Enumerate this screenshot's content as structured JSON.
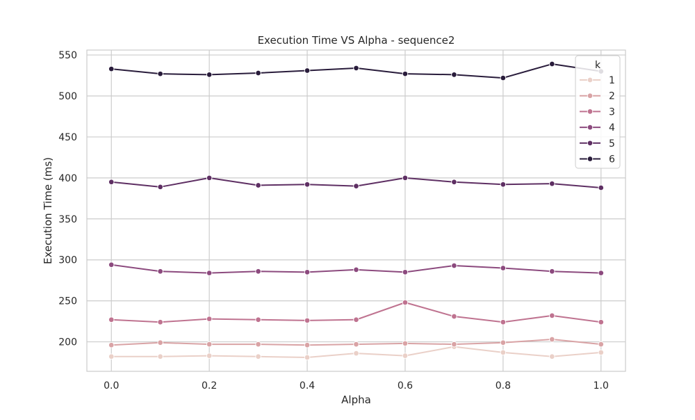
{
  "chart_data": {
    "type": "line",
    "title": "Execution Time VS Alpha - sequence2",
    "xlabel": "Alpha",
    "ylabel": "Execution Time (ms)",
    "x": [
      0.0,
      0.1,
      0.2,
      0.3,
      0.4,
      0.5,
      0.6,
      0.7,
      0.8,
      0.9,
      1.0
    ],
    "xlim": [
      -0.05,
      1.05
    ],
    "ylim": [
      164,
      556
    ],
    "xticks": [
      "0.0",
      "0.2",
      "0.4",
      "0.6",
      "0.8",
      "1.0"
    ],
    "yticks": [
      "200",
      "250",
      "300",
      "350",
      "400",
      "450",
      "500",
      "550"
    ],
    "grid": true,
    "legend": {
      "title": "k",
      "position": "top-right"
    },
    "series": [
      {
        "name": "1",
        "color": "#ead0c8",
        "values": [
          182,
          182,
          183,
          182,
          181,
          186,
          183,
          194,
          187,
          182,
          187
        ]
      },
      {
        "name": "2",
        "color": "#d9a3a5",
        "values": [
          196,
          199,
          197,
          197,
          196,
          197,
          198,
          197,
          199,
          203,
          197
        ]
      },
      {
        "name": "3",
        "color": "#bf7390",
        "values": [
          227,
          224,
          228,
          227,
          226,
          227,
          248,
          231,
          224,
          232,
          224
        ]
      },
      {
        "name": "4",
        "color": "#8c4a7e",
        "values": [
          294,
          286,
          284,
          286,
          285,
          288,
          285,
          293,
          290,
          286,
          284
        ]
      },
      {
        "name": "5",
        "color": "#5e2f63",
        "values": [
          395,
          389,
          400,
          391,
          392,
          390,
          400,
          395,
          392,
          393,
          388
        ]
      },
      {
        "name": "6",
        "color": "#291c3b",
        "values": [
          533,
          527,
          526,
          528,
          531,
          534,
          527,
          526,
          522,
          539,
          530
        ]
      }
    ]
  }
}
